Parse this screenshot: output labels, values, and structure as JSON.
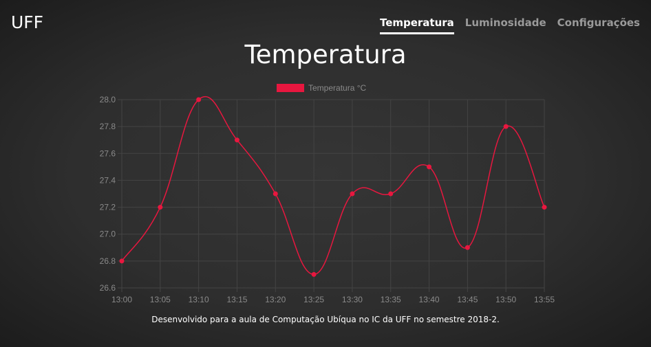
{
  "header": {
    "brand": "UFF",
    "nav": [
      {
        "label": "Temperatura",
        "active": true
      },
      {
        "label": "Luminosidade",
        "active": false
      },
      {
        "label": "Configurações",
        "active": false
      }
    ]
  },
  "page_title": "Temperatura",
  "footer": "Desenvolvido para a aula de Computação Ubíqua no IC da UFF no semestre 2018-2.",
  "colors": {
    "series": "#e8173f",
    "grid": "#444444",
    "axis_text": "#8a8a8a"
  },
  "chart_data": {
    "type": "line",
    "title": "",
    "xlabel": "",
    "ylabel": "",
    "categories": [
      "13:00",
      "13:05",
      "13:10",
      "13:15",
      "13:20",
      "13:25",
      "13:30",
      "13:35",
      "13:40",
      "13:45",
      "13:50",
      "13:55"
    ],
    "series": [
      {
        "name": "Temperatura °C",
        "values": [
          26.8,
          27.2,
          28.0,
          27.7,
          27.3,
          26.7,
          27.3,
          27.3,
          27.5,
          26.9,
          27.8,
          27.2
        ]
      }
    ],
    "yticks": [
      "26.6",
      "26.8",
      "27.0",
      "27.2",
      "27.4",
      "27.6",
      "27.8",
      "28.0"
    ],
    "ylim": [
      26.6,
      28.0
    ],
    "grid": true,
    "legend": "top-center"
  }
}
